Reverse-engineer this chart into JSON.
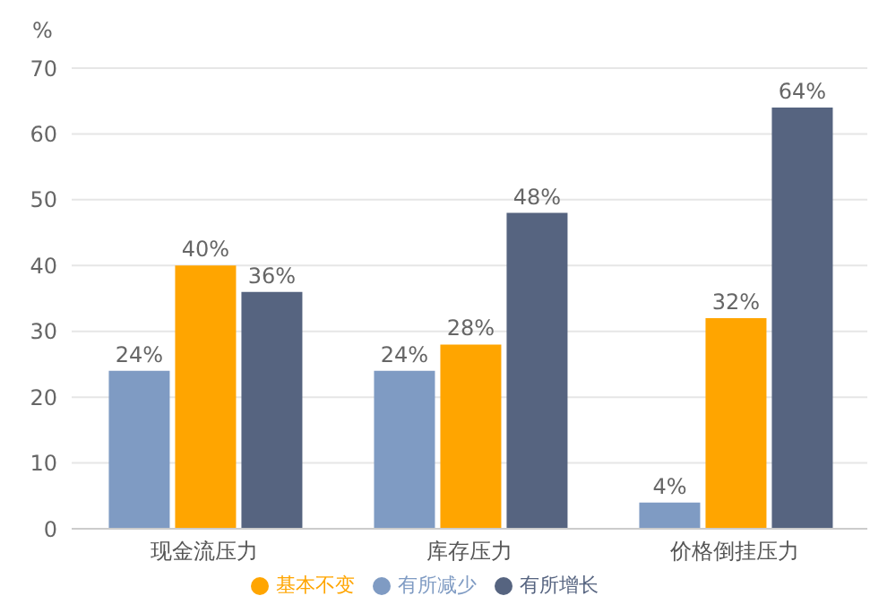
{
  "chart_data": {
    "type": "bar",
    "ylabel": "%",
    "categories": [
      "现金流压力",
      "库存压力",
      "价格倒挂压力"
    ],
    "series": [
      {
        "name": "有所减少",
        "color": "#7f9bc3",
        "values": [
          24,
          24,
          4
        ],
        "value_labels": [
          "24%",
          "24%",
          "4%"
        ]
      },
      {
        "name": "基本不变",
        "color": "#ffa500",
        "values": [
          40,
          28,
          32
        ],
        "value_labels": [
          "40%",
          "28%",
          "32%"
        ]
      },
      {
        "name": "有所增长",
        "color": "#566480",
        "values": [
          36,
          48,
          64
        ],
        "value_labels": [
          "36%",
          "48%",
          "64%"
        ]
      }
    ],
    "ylim": [
      0,
      70
    ],
    "yticks": [
      0,
      10,
      20,
      30,
      40,
      50,
      60,
      70
    ],
    "grid": "y",
    "legend": "bottom"
  }
}
